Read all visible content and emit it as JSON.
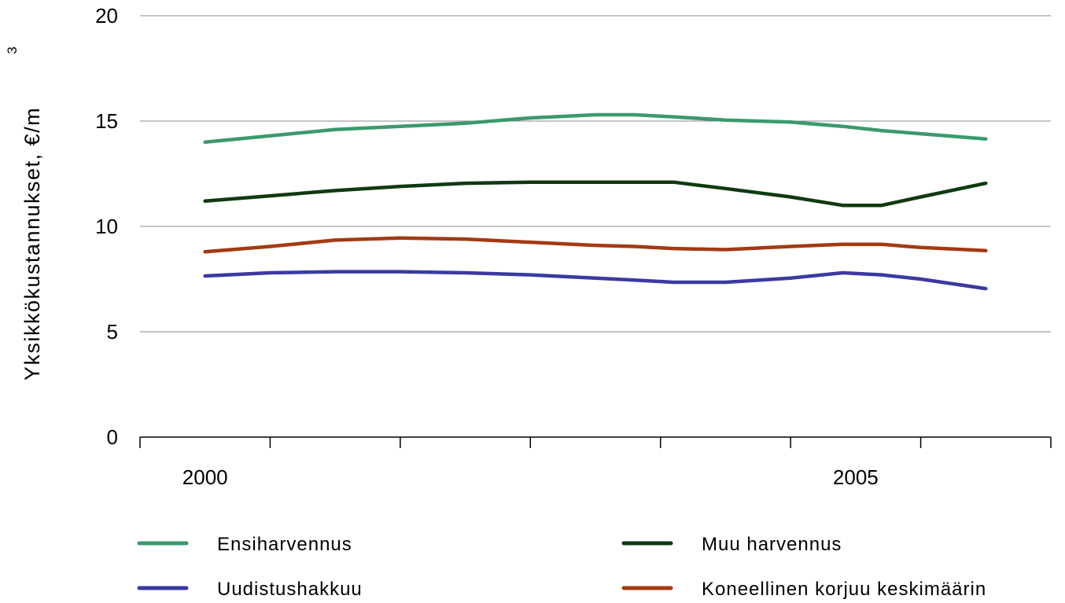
{
  "chart_data": {
    "type": "line",
    "title": "",
    "xlabel": "",
    "ylabel": "Yksikkökustannukset, €/m",
    "ylabel_superscript": "3",
    "ylim": [
      0,
      20
    ],
    "yticks": [
      0,
      5,
      10,
      15,
      20
    ],
    "xlim": [
      1999.5,
      2006.5
    ],
    "xticks": [
      2000,
      2005
    ],
    "grid": true,
    "legend": "bottom",
    "x": [
      2000.0,
      2000.5,
      2001.0,
      2001.5,
      2002.0,
      2002.5,
      2003.0,
      2003.3,
      2003.6,
      2004.0,
      2004.5,
      2004.9,
      2005.2,
      2005.5,
      2006.0
    ],
    "series": [
      {
        "name": "Ensiharvennus",
        "color": "#3a9a6b",
        "values": [
          14.0,
          14.3,
          14.6,
          14.75,
          14.9,
          15.15,
          15.3,
          15.3,
          15.2,
          15.05,
          14.95,
          14.75,
          14.55,
          14.4,
          14.15
        ]
      },
      {
        "name": "Muu harvennus",
        "color": "#0f3a10",
        "values": [
          11.2,
          11.45,
          11.7,
          11.9,
          12.05,
          12.1,
          12.1,
          12.1,
          12.1,
          11.8,
          11.4,
          11.0,
          11.0,
          11.4,
          12.05
        ]
      },
      {
        "name": "Uudistushakkuu",
        "color": "#3a3aa0",
        "values": [
          7.65,
          7.8,
          7.85,
          7.85,
          7.8,
          7.7,
          7.55,
          7.45,
          7.35,
          7.35,
          7.55,
          7.8,
          7.7,
          7.5,
          7.05
        ]
      },
      {
        "name": "Koneellinen korjuu keskimäärin",
        "color": "#a33a12",
        "values": [
          8.8,
          9.05,
          9.35,
          9.45,
          9.4,
          9.25,
          9.1,
          9.05,
          8.95,
          8.9,
          9.05,
          9.15,
          9.15,
          9.0,
          8.85
        ]
      }
    ]
  }
}
